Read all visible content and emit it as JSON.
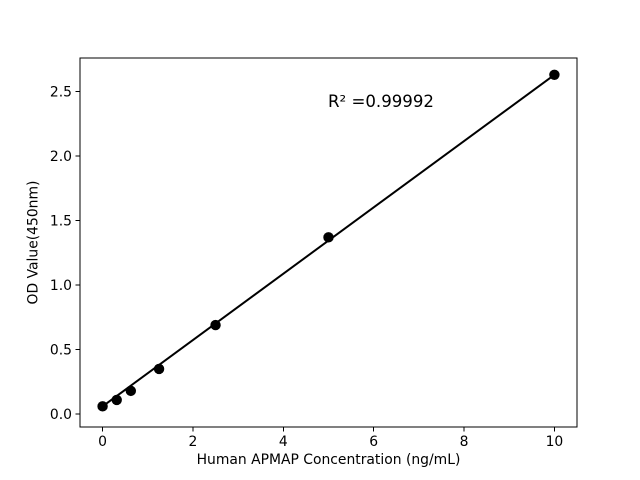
{
  "chart_data": {
    "type": "scatter",
    "title": "",
    "xlabel": "Human APMAP Concentration (ng/mL)",
    "ylabel": "OD Value(450nm)",
    "annotation": "R² =0.99992",
    "x": [
      0,
      0.313,
      0.625,
      1.25,
      2.5,
      5,
      10
    ],
    "y": [
      0.06,
      0.11,
      0.18,
      0.35,
      0.69,
      1.37,
      2.63
    ],
    "fit_line": {
      "x": [
        0,
        10
      ],
      "y": [
        0.06,
        2.63
      ]
    },
    "xticks": [
      0,
      2,
      4,
      6,
      8,
      10
    ],
    "yticks": [
      0.0,
      0.5,
      1.0,
      1.5,
      2.0,
      2.5
    ],
    "xlim": [
      -0.5,
      10.5
    ],
    "ylim": [
      -0.1,
      2.76
    ],
    "grid": false,
    "legend": "none",
    "marker_color": "#000000",
    "line_color": "#000000",
    "spine_color": "#000000",
    "background_color": "#ffffff"
  }
}
